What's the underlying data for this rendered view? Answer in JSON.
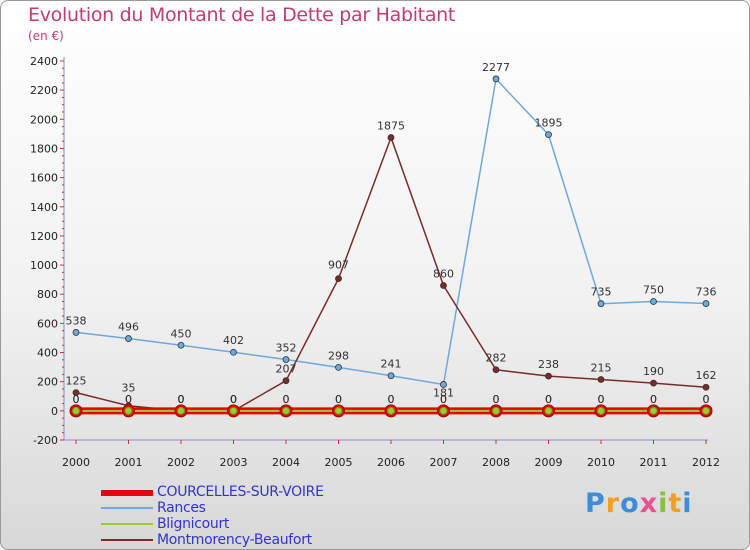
{
  "header": {
    "title": "Evolution du Montant de la Dette par Habitant",
    "subtitle": "(en €)"
  },
  "logo": {
    "text": "Proxiti"
  },
  "chart_data": {
    "type": "line",
    "title": "Evolution du Montant de la Dette par Habitant",
    "subtitle": "(en €)",
    "x": [
      2000,
      2001,
      2002,
      2003,
      2004,
      2005,
      2006,
      2007,
      2008,
      2009,
      2010,
      2011,
      2012
    ],
    "ylim": [
      -200,
      2400
    ],
    "yticks": [
      -200,
      0,
      200,
      400,
      600,
      800,
      1000,
      1200,
      1400,
      1600,
      1800,
      2000,
      2200,
      2400
    ],
    "grid": false,
    "legend_position": "bottom-left",
    "series": [
      {
        "name": "COURCELLES-SUR-VOIRE",
        "color": "#e8000b",
        "values": [
          0,
          0,
          0,
          0,
          0,
          0,
          0,
          0,
          0,
          0,
          0,
          0,
          0
        ]
      },
      {
        "name": "Rances",
        "color": "#6fa8dc",
        "values": [
          538,
          496,
          450,
          402,
          352,
          298,
          241,
          181,
          2277,
          1895,
          735,
          750,
          736
        ]
      },
      {
        "name": "Blignicourt",
        "color": "#99cc33",
        "values": [
          0,
          0,
          0,
          0,
          0,
          0,
          0,
          0,
          0,
          0,
          0,
          0,
          0
        ]
      },
      {
        "name": "Montmorency-Beaufort",
        "color": "#7a2a2a",
        "values": [
          125,
          35,
          0,
          0,
          207,
          907,
          1875,
          860,
          282,
          238,
          215,
          190,
          162
        ]
      }
    ],
    "point_labels": {
      "Rances": [
        "538",
        "496",
        "450",
        "402",
        "352",
        "298",
        "241",
        "181",
        "2277",
        "1895",
        "735",
        "750",
        "736"
      ],
      "Montmorency-Beaufort": [
        "125",
        "35",
        "0",
        "0",
        "207",
        "907",
        "1875",
        "860",
        "282",
        "238",
        "215",
        "190",
        "162"
      ],
      "COURCELLES-SUR-VOIRE": [
        "0",
        "0",
        "0",
        "0",
        "0",
        "0",
        "0",
        "0",
        "0",
        "0",
        "0",
        "0",
        "0"
      ],
      "Blignicourt": [
        "0",
        "0",
        "0",
        "0",
        "0",
        "0",
        "0",
        "0",
        "0",
        "0",
        "0",
        "0",
        "0"
      ]
    }
  }
}
